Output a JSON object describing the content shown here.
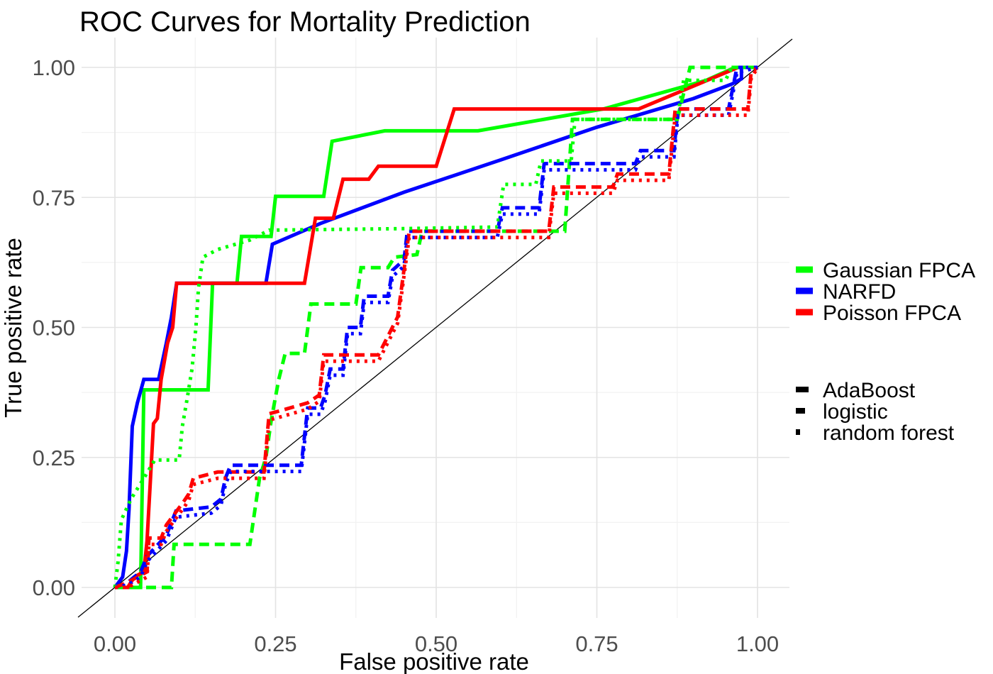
{
  "title": "ROC Curves for Mortality Prediction",
  "axes": {
    "x": {
      "label": "False positive rate",
      "tick_labels": [
        "0.00",
        "0.25",
        "0.50",
        "0.75",
        "1.00"
      ],
      "tick_values": [
        0,
        0.25,
        0.5,
        0.75,
        1
      ],
      "minor_values": [
        0.125,
        0.375,
        0.625,
        0.875
      ],
      "range": [
        0,
        1
      ]
    },
    "y": {
      "label": "True positive rate",
      "tick_labels": [
        "0.00",
        "0.25",
        "0.50",
        "0.75",
        "1.00"
      ],
      "tick_values": [
        0,
        0.25,
        0.5,
        0.75,
        1
      ],
      "minor_values": [
        0.125,
        0.375,
        0.625,
        0.875
      ],
      "range": [
        0,
        1
      ]
    }
  },
  "colors": {
    "background": "#ffffff",
    "grid_major": "#e3e3e3",
    "grid_minor": "#f2f2f2",
    "tick_text": "#4d4d4d",
    "text": "#000000",
    "diagonal": "#000000",
    "gaussian_fpca": "#00ff00",
    "narfd": "#0000ff",
    "poisson_fpca": "#ff0000"
  },
  "legend": {
    "color": {
      "items": [
        {
          "label": "Gaussian FPCA",
          "color": "#00ff00"
        },
        {
          "label": "NARFD",
          "color": "#0000ff"
        },
        {
          "label": "Poisson FPCA",
          "color": "#ff0000"
        }
      ]
    },
    "linetype": {
      "items": [
        {
          "label": "AdaBoost",
          "linetype": "solid",
          "key_length": 18
        },
        {
          "label": "logistic",
          "linetype": "dashed",
          "key_length": 13
        },
        {
          "label": "random forest",
          "linetype": "dotted",
          "key_length": 6
        }
      ]
    }
  },
  "chart_data": {
    "type": "line",
    "title": "ROC Curves for Mortality Prediction",
    "xlabel": "False positive rate",
    "ylabel": "True positive rate",
    "xlim": [
      0,
      1
    ],
    "ylim": [
      0,
      1
    ],
    "grid": true,
    "legend_position": "right",
    "reference_line": {
      "from": [
        0,
        0
      ],
      "to": [
        1,
        1
      ],
      "color": "#000000"
    },
    "series": [
      {
        "model": "Gaussian FPCA",
        "classifier": "AdaBoost",
        "color": "#00ff00",
        "linetype": "solid",
        "points": [
          [
            0,
            0
          ],
          [
            0.04,
            0
          ],
          [
            0.045,
            0.38
          ],
          [
            0.145,
            0.38
          ],
          [
            0.152,
            0.585
          ],
          [
            0.19,
            0.585
          ],
          [
            0.197,
            0.675
          ],
          [
            0.243,
            0.675
          ],
          [
            0.25,
            0.752
          ],
          [
            0.325,
            0.752
          ],
          [
            0.338,
            0.858
          ],
          [
            0.42,
            0.878
          ],
          [
            0.565,
            0.878
          ],
          [
            0.76,
            0.92
          ],
          [
            0.92,
            0.975
          ],
          [
            0.965,
            1
          ],
          [
            1,
            1
          ]
        ]
      },
      {
        "model": "NARFD",
        "classifier": "AdaBoost",
        "color": "#0000ff",
        "linetype": "solid",
        "points": [
          [
            0,
            0
          ],
          [
            0.012,
            0.02
          ],
          [
            0.018,
            0.07
          ],
          [
            0.022,
            0.15
          ],
          [
            0.027,
            0.31
          ],
          [
            0.035,
            0.355
          ],
          [
            0.045,
            0.4
          ],
          [
            0.068,
            0.4
          ],
          [
            0.08,
            0.47
          ],
          [
            0.088,
            0.52
          ],
          [
            0.096,
            0.585
          ],
          [
            0.235,
            0.585
          ],
          [
            0.245,
            0.66
          ],
          [
            0.32,
            0.7
          ],
          [
            0.45,
            0.76
          ],
          [
            0.6,
            0.822
          ],
          [
            0.75,
            0.885
          ],
          [
            0.9,
            0.94
          ],
          [
            0.96,
            0.968
          ],
          [
            0.975,
            0.978
          ],
          [
            0.975,
            1
          ],
          [
            1,
            1
          ]
        ]
      },
      {
        "model": "Poisson FPCA",
        "classifier": "AdaBoost",
        "color": "#ff0000",
        "linetype": "solid",
        "points": [
          [
            0,
            0
          ],
          [
            0.02,
            0
          ],
          [
            0.03,
            0.02
          ],
          [
            0.045,
            0.03
          ],
          [
            0.05,
            0.09
          ],
          [
            0.055,
            0.2
          ],
          [
            0.06,
            0.315
          ],
          [
            0.066,
            0.325
          ],
          [
            0.072,
            0.4
          ],
          [
            0.082,
            0.47
          ],
          [
            0.09,
            0.5
          ],
          [
            0.096,
            0.585
          ],
          [
            0.295,
            0.585
          ],
          [
            0.312,
            0.71
          ],
          [
            0.34,
            0.71
          ],
          [
            0.355,
            0.785
          ],
          [
            0.395,
            0.785
          ],
          [
            0.41,
            0.81
          ],
          [
            0.5,
            0.81
          ],
          [
            0.528,
            0.92
          ],
          [
            0.815,
            0.92
          ],
          [
            0.97,
            1
          ],
          [
            1,
            1
          ]
        ]
      },
      {
        "model": "Gaussian FPCA",
        "classifier": "logistic",
        "color": "#00ff00",
        "linetype": "dashed",
        "points": [
          [
            0,
            0
          ],
          [
            0.03,
            0
          ],
          [
            0.088,
            0
          ],
          [
            0.092,
            0.083
          ],
          [
            0.21,
            0.083
          ],
          [
            0.225,
            0.21
          ],
          [
            0.235,
            0.25
          ],
          [
            0.243,
            0.32
          ],
          [
            0.255,
            0.4
          ],
          [
            0.265,
            0.45
          ],
          [
            0.295,
            0.45
          ],
          [
            0.305,
            0.545
          ],
          [
            0.375,
            0.545
          ],
          [
            0.383,
            0.615
          ],
          [
            0.425,
            0.615
          ],
          [
            0.435,
            0.635
          ],
          [
            0.47,
            0.64
          ],
          [
            0.478,
            0.685
          ],
          [
            0.7,
            0.685
          ],
          [
            0.712,
            0.9
          ],
          [
            0.875,
            0.9
          ],
          [
            0.895,
            1
          ],
          [
            1,
            1
          ]
        ]
      },
      {
        "model": "NARFD",
        "classifier": "logistic",
        "color": "#0000ff",
        "linetype": "dashed",
        "points": [
          [
            0,
            0
          ],
          [
            0.02,
            0.01
          ],
          [
            0.04,
            0.03
          ],
          [
            0.05,
            0.06
          ],
          [
            0.065,
            0.08
          ],
          [
            0.08,
            0.1
          ],
          [
            0.095,
            0.147
          ],
          [
            0.15,
            0.155
          ],
          [
            0.165,
            0.17
          ],
          [
            0.172,
            0.21
          ],
          [
            0.18,
            0.235
          ],
          [
            0.29,
            0.235
          ],
          [
            0.3,
            0.345
          ],
          [
            0.32,
            0.345
          ],
          [
            0.327,
            0.37
          ],
          [
            0.335,
            0.42
          ],
          [
            0.355,
            0.42
          ],
          [
            0.362,
            0.5
          ],
          [
            0.382,
            0.5
          ],
          [
            0.388,
            0.56
          ],
          [
            0.425,
            0.56
          ],
          [
            0.432,
            0.61
          ],
          [
            0.45,
            0.63
          ],
          [
            0.455,
            0.685
          ],
          [
            0.595,
            0.685
          ],
          [
            0.603,
            0.73
          ],
          [
            0.66,
            0.73
          ],
          [
            0.668,
            0.815
          ],
          [
            0.81,
            0.815
          ],
          [
            0.818,
            0.84
          ],
          [
            0.87,
            0.84
          ],
          [
            0.876,
            0.92
          ],
          [
            0.955,
            0.92
          ],
          [
            0.968,
            1
          ],
          [
            1,
            1
          ]
        ]
      },
      {
        "model": "Poisson FPCA",
        "classifier": "logistic",
        "color": "#ff0000",
        "linetype": "dashed",
        "points": [
          [
            0,
            0
          ],
          [
            0.02,
            0.01
          ],
          [
            0.035,
            0.02
          ],
          [
            0.05,
            0.03
          ],
          [
            0.053,
            0.095
          ],
          [
            0.072,
            0.095
          ],
          [
            0.08,
            0.12
          ],
          [
            0.098,
            0.15
          ],
          [
            0.107,
            0.165
          ],
          [
            0.115,
            0.18
          ],
          [
            0.122,
            0.21
          ],
          [
            0.16,
            0.222
          ],
          [
            0.232,
            0.222
          ],
          [
            0.24,
            0.334
          ],
          [
            0.258,
            0.34
          ],
          [
            0.3,
            0.355
          ],
          [
            0.318,
            0.37
          ],
          [
            0.325,
            0.447
          ],
          [
            0.41,
            0.447
          ],
          [
            0.44,
            0.52
          ],
          [
            0.458,
            0.685
          ],
          [
            0.675,
            0.685
          ],
          [
            0.683,
            0.77
          ],
          [
            0.775,
            0.77
          ],
          [
            0.782,
            0.795
          ],
          [
            0.862,
            0.795
          ],
          [
            0.872,
            0.92
          ],
          [
            0.985,
            0.92
          ],
          [
            0.99,
            0.99
          ],
          [
            1,
            1
          ]
        ]
      },
      {
        "model": "Gaussian FPCA",
        "classifier": "random forest",
        "color": "#00ff00",
        "linetype": "dotted",
        "points": [
          [
            0,
            0
          ],
          [
            0.005,
            0.05
          ],
          [
            0.01,
            0.13
          ],
          [
            0.025,
            0.17
          ],
          [
            0.045,
            0.21
          ],
          [
            0.062,
            0.245
          ],
          [
            0.1,
            0.245
          ],
          [
            0.105,
            0.31
          ],
          [
            0.112,
            0.36
          ],
          [
            0.12,
            0.42
          ],
          [
            0.126,
            0.5
          ],
          [
            0.13,
            0.575
          ],
          [
            0.137,
            0.635
          ],
          [
            0.16,
            0.65
          ],
          [
            0.21,
            0.668
          ],
          [
            0.24,
            0.687
          ],
          [
            0.45,
            0.69
          ],
          [
            0.595,
            0.693
          ],
          [
            0.605,
            0.775
          ],
          [
            0.655,
            0.775
          ],
          [
            0.663,
            0.82
          ],
          [
            0.71,
            0.82
          ],
          [
            0.716,
            0.9
          ],
          [
            0.875,
            0.9
          ],
          [
            0.885,
            0.975
          ],
          [
            0.95,
            0.975
          ],
          [
            0.96,
            1
          ],
          [
            1,
            1
          ]
        ]
      },
      {
        "model": "NARFD",
        "classifier": "random forest",
        "color": "#0000ff",
        "linetype": "dotted",
        "points": [
          [
            0,
            0
          ],
          [
            0.02,
            0.005
          ],
          [
            0.04,
            0.02
          ],
          [
            0.05,
            0.05
          ],
          [
            0.065,
            0.07
          ],
          [
            0.08,
            0.09
          ],
          [
            0.095,
            0.135
          ],
          [
            0.15,
            0.143
          ],
          [
            0.165,
            0.158
          ],
          [
            0.172,
            0.198
          ],
          [
            0.18,
            0.223
          ],
          [
            0.29,
            0.223
          ],
          [
            0.3,
            0.333
          ],
          [
            0.32,
            0.333
          ],
          [
            0.327,
            0.358
          ],
          [
            0.335,
            0.408
          ],
          [
            0.355,
            0.408
          ],
          [
            0.362,
            0.488
          ],
          [
            0.382,
            0.488
          ],
          [
            0.388,
            0.548
          ],
          [
            0.425,
            0.548
          ],
          [
            0.432,
            0.598
          ],
          [
            0.45,
            0.618
          ],
          [
            0.455,
            0.673
          ],
          [
            0.595,
            0.673
          ],
          [
            0.603,
            0.718
          ],
          [
            0.66,
            0.718
          ],
          [
            0.668,
            0.803
          ],
          [
            0.81,
            0.803
          ],
          [
            0.818,
            0.828
          ],
          [
            0.87,
            0.828
          ],
          [
            0.876,
            0.908
          ],
          [
            0.955,
            0.908
          ],
          [
            0.968,
            0.99
          ],
          [
            1,
            1
          ]
        ]
      },
      {
        "model": "Poisson FPCA",
        "classifier": "random forest",
        "color": "#ff0000",
        "linetype": "dotted",
        "points": [
          [
            0,
            0
          ],
          [
            0.02,
            0
          ],
          [
            0.035,
            0.01
          ],
          [
            0.05,
            0.02
          ],
          [
            0.053,
            0.083
          ],
          [
            0.072,
            0.083
          ],
          [
            0.08,
            0.108
          ],
          [
            0.098,
            0.138
          ],
          [
            0.107,
            0.153
          ],
          [
            0.115,
            0.168
          ],
          [
            0.122,
            0.198
          ],
          [
            0.16,
            0.21
          ],
          [
            0.232,
            0.21
          ],
          [
            0.24,
            0.322
          ],
          [
            0.258,
            0.328
          ],
          [
            0.3,
            0.343
          ],
          [
            0.318,
            0.358
          ],
          [
            0.325,
            0.435
          ],
          [
            0.41,
            0.435
          ],
          [
            0.44,
            0.508
          ],
          [
            0.458,
            0.673
          ],
          [
            0.675,
            0.673
          ],
          [
            0.683,
            0.758
          ],
          [
            0.775,
            0.758
          ],
          [
            0.782,
            0.783
          ],
          [
            0.862,
            0.783
          ],
          [
            0.872,
            0.908
          ],
          [
            0.985,
            0.908
          ],
          [
            0.99,
            0.978
          ],
          [
            1,
            1
          ]
        ]
      }
    ]
  }
}
